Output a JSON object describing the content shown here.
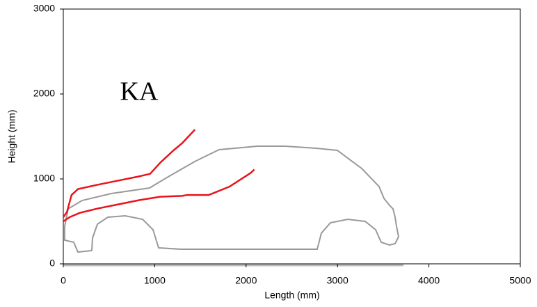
{
  "chart_data": {
    "type": "line",
    "annotation": "KA",
    "x_label": "Length (mm)",
    "y_label": "Height (mm)",
    "xlim": [
      0,
      5000
    ],
    "ylim": [
      0,
      3000
    ],
    "xticks": [
      0,
      1000,
      2000,
      3000,
      4000,
      5000
    ],
    "yticks": [
      0,
      1000,
      2000,
      3000
    ],
    "series": [
      {
        "color": "#e8141b",
        "x": [
          0,
          40,
          90,
          160,
          370,
          600,
          830,
          950,
          1060,
          1210,
          1300,
          1440
        ],
        "values": [
          550,
          610,
          810,
          880,
          930,
          980,
          1030,
          1060,
          1190,
          1340,
          1420,
          1580
        ]
      },
      {
        "color": "#e8141b",
        "x": [
          0,
          70,
          180,
          370,
          600,
          830,
          1060,
          1300,
          1350,
          1590,
          1820,
          2050,
          2090
        ],
        "values": [
          500,
          550,
          600,
          650,
          700,
          750,
          790,
          800,
          810,
          810,
          910,
          1070,
          1110
        ]
      }
    ]
  }
}
